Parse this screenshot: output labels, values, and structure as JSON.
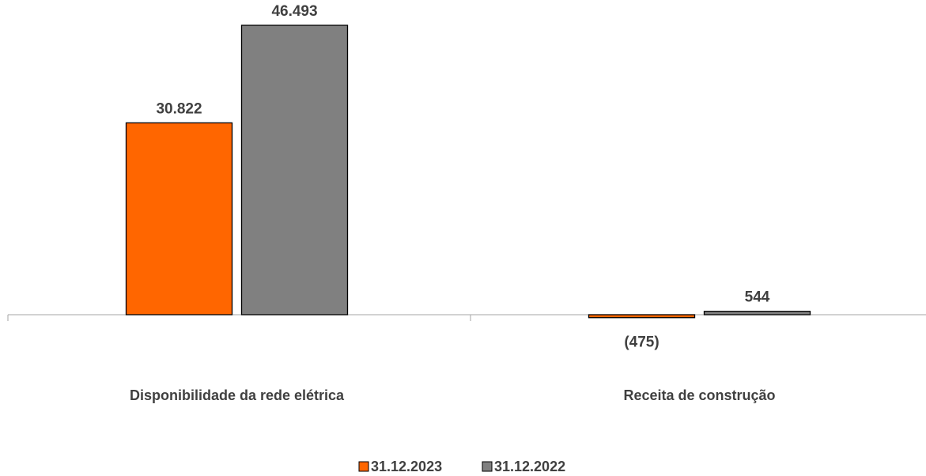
{
  "chart_data": {
    "type": "bar",
    "categories": [
      "Disponibilidade da rede elétrica",
      "Receita de construção"
    ],
    "series": [
      {
        "name": "31.12.2023",
        "color": "#FF6600",
        "values": [
          30822,
          -475
        ],
        "labels": [
          "30.822",
          "(475)"
        ]
      },
      {
        "name": "31.12.2022",
        "color": "#808080",
        "values": [
          46493,
          544
        ],
        "labels": [
          "46.493",
          "544"
        ]
      }
    ],
    "title": "",
    "xlabel": "",
    "ylabel": "",
    "ylim": [
      -5000,
      50000
    ],
    "grid": false,
    "legend_position": "bottom"
  }
}
